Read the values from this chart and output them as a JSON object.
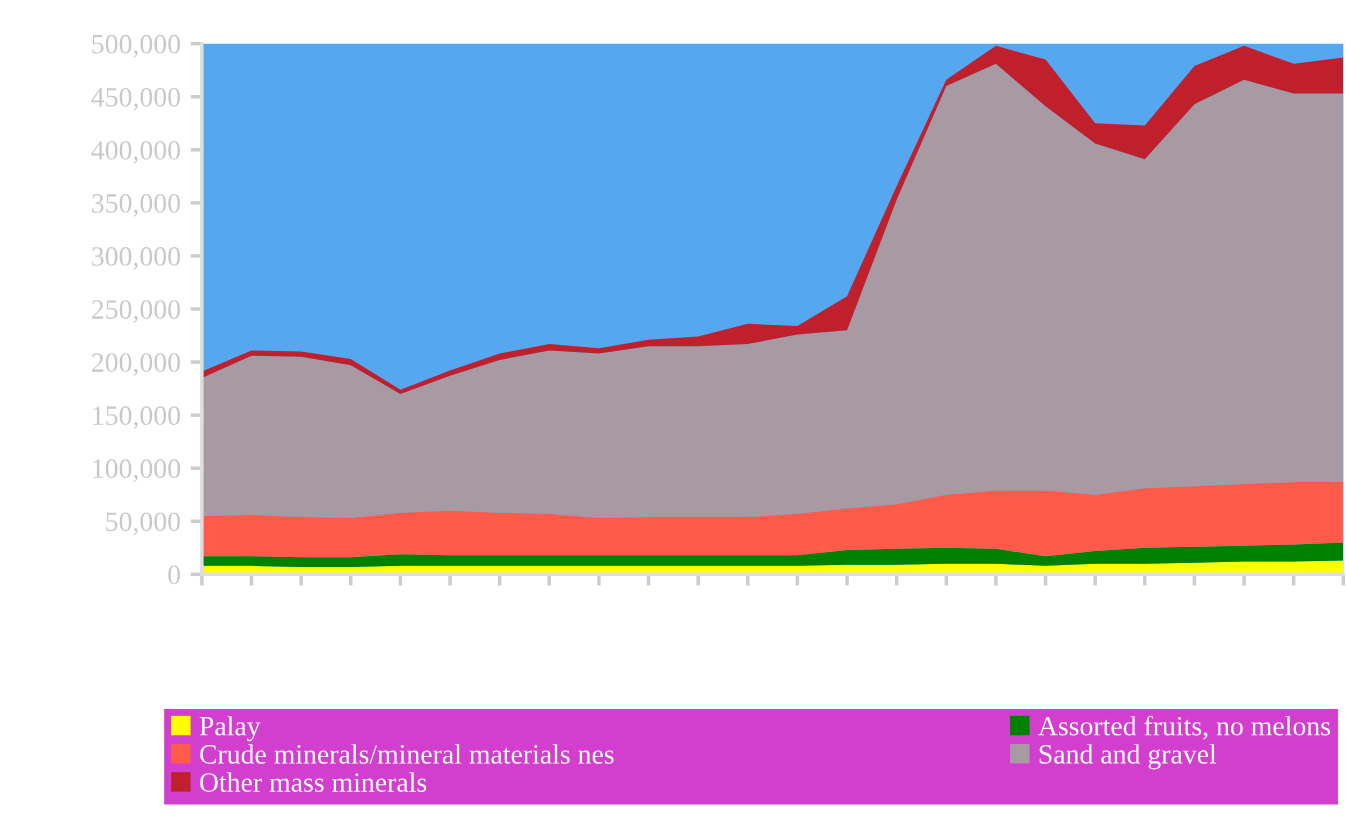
{
  "chart_data": {
    "type": "area",
    "stacked": true,
    "categories": [
      null,
      null,
      null,
      null,
      null,
      null,
      null,
      null,
      null,
      null,
      null,
      null,
      null,
      null,
      null,
      null,
      null,
      null,
      null,
      null,
      null,
      null,
      null,
      null
    ],
    "series": [
      {
        "name": "Palay",
        "color": "#ffff00",
        "values": [
          8000,
          8000,
          7000,
          7000,
          8000,
          8000,
          8000,
          8000,
          8000,
          8000,
          8000,
          8000,
          8000,
          9000,
          9000,
          10000,
          10000,
          8000,
          10000,
          10000,
          11000,
          12000,
          12000,
          13000
        ]
      },
      {
        "name": "Assorted fruits, no melons",
        "color": "#008000",
        "values": [
          9000,
          9000,
          9000,
          9000,
          11000,
          10000,
          10000,
          10000,
          10000,
          10000,
          10000,
          10000,
          10000,
          14000,
          15000,
          15000,
          14000,
          9000,
          12000,
          15000,
          15000,
          15000,
          16000,
          17000
        ]
      },
      {
        "name": "Crude minerals/mineral materials nes",
        "color": "#ff5a4a",
        "values": [
          38000,
          39000,
          38000,
          37000,
          39000,
          42000,
          40000,
          39000,
          35000,
          36000,
          36000,
          36000,
          39000,
          39000,
          42000,
          50000,
          55000,
          62000,
          53000,
          56000,
          57000,
          58000,
          59000,
          57000
        ]
      },
      {
        "name": "Sand and gravel",
        "color": "#a89aa3",
        "values": [
          130000,
          150000,
          151000,
          144000,
          112000,
          127000,
          144000,
          154000,
          155000,
          161000,
          161000,
          163000,
          169000,
          168000,
          287000,
          385000,
          402000,
          362000,
          331000,
          310000,
          360000,
          381000,
          366000,
          366000
        ]
      },
      {
        "name": "Other mass minerals",
        "color": "#c0202c",
        "values": [
          6000,
          5000,
          5000,
          6000,
          4000,
          5000,
          6000,
          6000,
          5000,
          6000,
          9000,
          19000,
          8000,
          32000,
          13000,
          6000,
          17000,
          44000,
          19000,
          32000,
          36000,
          32000,
          28000,
          34000
        ]
      }
    ],
    "ylim": [
      0,
      500000
    ],
    "yticks": [
      {
        "value": 0,
        "label": "0"
      },
      {
        "value": 50000,
        "label": "50,000"
      },
      {
        "value": 100000,
        "label": "100,000"
      },
      {
        "value": 150000,
        "label": "150,000"
      },
      {
        "value": 200000,
        "label": "200,000"
      },
      {
        "value": 250000,
        "label": "250,000"
      },
      {
        "value": 300000,
        "label": "300,000"
      },
      {
        "value": 350000,
        "label": "350,000"
      },
      {
        "value": 400000,
        "label": "400,000"
      },
      {
        "value": 450000,
        "label": "450,000"
      },
      {
        "value": 500000,
        "label": "500,000"
      }
    ],
    "tick_labels": "y",
    "grid": false,
    "legend": "bottom"
  }
}
